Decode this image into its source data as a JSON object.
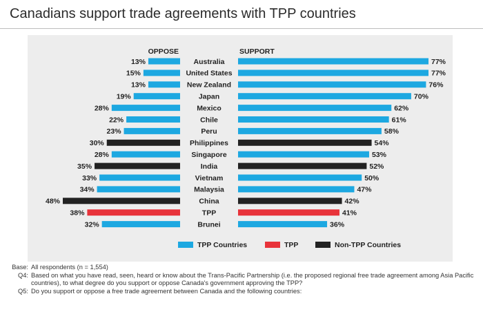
{
  "title": "Canadians support trade agreements with TPP countries",
  "chart_data": {
    "type": "bar",
    "orientation": "horizontal-diverging",
    "oppose_label": "OPPOSE",
    "support_label": "SUPPORT",
    "categories": [
      "Australia",
      "United States",
      "New Zealand",
      "Japan",
      "Mexico",
      "Chile",
      "Peru",
      "Philippines",
      "Singapore",
      "India",
      "Vietnam",
      "Malaysia",
      "China",
      "TPP",
      "Brunei"
    ],
    "oppose": [
      13,
      15,
      13,
      19,
      28,
      22,
      23,
      30,
      28,
      35,
      33,
      34,
      48,
      38,
      32
    ],
    "support": [
      77,
      77,
      76,
      70,
      62,
      61,
      58,
      54,
      53,
      52,
      50,
      47,
      42,
      41,
      36
    ],
    "groups": [
      "tpp",
      "tpp",
      "tpp",
      "tpp",
      "tpp",
      "tpp",
      "tpp",
      "non-tpp",
      "tpp",
      "non-tpp",
      "tpp",
      "tpp",
      "non-tpp",
      "agreement",
      "tpp"
    ],
    "value_suffix": "%",
    "legend": [
      {
        "key": "tpp",
        "label": "TPP Countries",
        "color": "#1da8e1"
      },
      {
        "key": "agreement",
        "label": "TPP",
        "color": "#e8333a"
      },
      {
        "key": "non-tpp",
        "label": "Non-TPP Countries",
        "color": "#222222"
      }
    ],
    "legend_position": "bottom"
  },
  "notes": [
    {
      "label": "Base:",
      "text": "All respondents (n = 1,554)"
    },
    {
      "label": "Q4:",
      "text": "Based on what you have read, seen, heard or know about the Trans-Pacific Partnership (i.e. the proposed regional free trade agreement among Asia Pacific countries), to what degree do you support or oppose Canada's government approving the TPP?"
    },
    {
      "label": "Q5:",
      "text": "Do you support or oppose a free trade agreement between Canada and the following countries:"
    }
  ]
}
